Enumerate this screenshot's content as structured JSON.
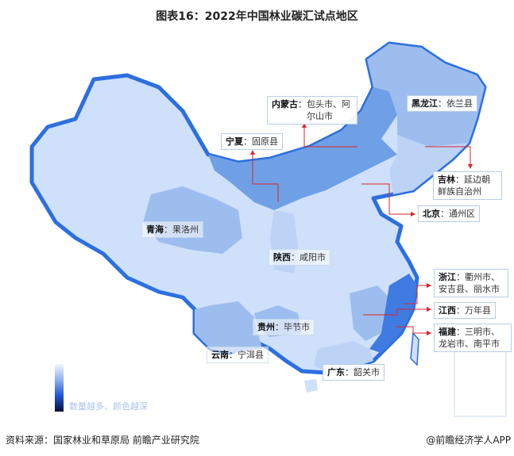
{
  "title": "图表16：2022年中国林业碳汇试点地区",
  "labels": [
    {
      "province": "内蒙古",
      "sites": "包头市、阿尔山市"
    },
    {
      "province": "黑龙江",
      "sites": "依兰县"
    },
    {
      "province": "宁夏",
      "sites": "固原县"
    },
    {
      "province": "吉林",
      "sites": "延边朝鲜族自治州"
    },
    {
      "province": "北京",
      "sites": "通州区"
    },
    {
      "province": "青海",
      "sites": "果洛州"
    },
    {
      "province": "陕西",
      "sites": "咸阳市"
    },
    {
      "province": "浙江",
      "sites": "衢州市、安吉县、丽水市"
    },
    {
      "province": "江西",
      "sites": "万年县"
    },
    {
      "province": "福建",
      "sites": "三明市、龙岩市、南平市"
    },
    {
      "province": "贵州",
      "sites": "毕节市"
    },
    {
      "province": "云南",
      "sites": "宁洱县"
    },
    {
      "province": "广东",
      "sites": "韶关市"
    }
  ],
  "separator": "：",
  "legend": {
    "text": "数量越多、颜色越深",
    "colors": [
      "#f4f8ff",
      "#8fb0ee",
      "#1f55d8",
      "#05103a"
    ]
  },
  "source": "资料来源：国家林业和草原局 前瞻产业研究院",
  "credit": "@前瞻经济学人APP",
  "colors": {
    "base": "#cfe0fb",
    "light": "#bcd3f6",
    "medium": "#9dbdef",
    "darker": "#6fa0e6",
    "dark": "#3f7be0",
    "border": "#2c6fe0",
    "leader": "#d9262c"
  }
}
